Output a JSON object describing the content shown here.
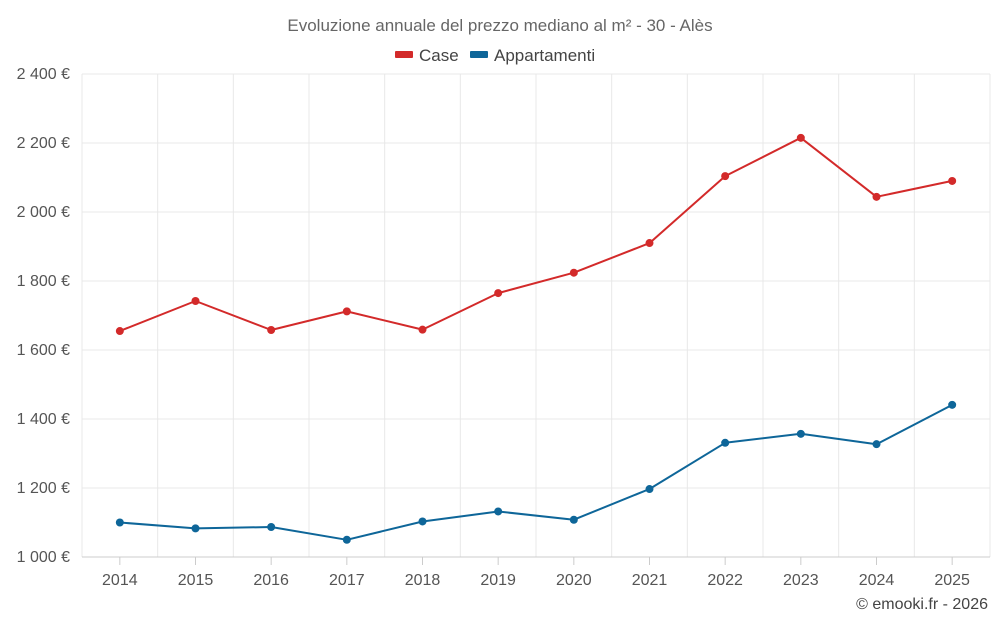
{
  "chart_data": {
    "type": "line",
    "title": "Evoluzione annuale del prezzo mediano al m² - 30 - Alès",
    "categories": [
      "2014",
      "2015",
      "2016",
      "2017",
      "2018",
      "2019",
      "2020",
      "2021",
      "2022",
      "2023",
      "2024",
      "2025"
    ],
    "series": [
      {
        "name": "Case",
        "color": "#d32a2a",
        "values": [
          1655,
          1742,
          1658,
          1712,
          1659,
          1765,
          1824,
          1910,
          2104,
          2215,
          2044,
          2090
        ]
      },
      {
        "name": "Appartamenti",
        "color": "#0e6699",
        "values": [
          1100,
          1083,
          1087,
          1050,
          1103,
          1132,
          1108,
          1197,
          1331,
          1357,
          1327,
          1441
        ]
      }
    ],
    "ylim": [
      1000,
      2400
    ],
    "yticks": [
      1000,
      1200,
      1400,
      1600,
      1800,
      2000,
      2200,
      2400
    ],
    "ytick_labels": [
      "1 000 €",
      "1 200 €",
      "1 400 €",
      "1 600 €",
      "1 800 €",
      "2 000 €",
      "2 200 €",
      "2 400 €"
    ],
    "legend_position": "top-center",
    "grid": true,
    "xlabel": "",
    "ylabel": ""
  },
  "credit": "© emooki.fr - 2026"
}
